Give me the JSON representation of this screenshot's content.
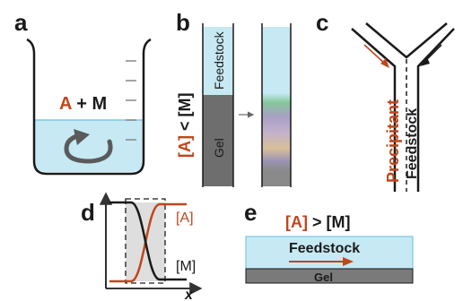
{
  "panels": {
    "a": {
      "label": "a",
      "eq": {
        "A": "A",
        "op": " + ",
        "M": "M"
      }
    },
    "b": {
      "label": "b",
      "condition": {
        "open": "[A]",
        "rel": " < ",
        "rhs": "[M]"
      },
      "feedstock": "Feedstock",
      "gel": "Gel"
    },
    "c": {
      "label": "c",
      "precipitant": "Precipitant",
      "feedstock": "Feedstock"
    },
    "d": {
      "label": "d",
      "series_A": "[A]",
      "series_M": "[M]",
      "xlabel": "x"
    },
    "e": {
      "label": "e",
      "condition": {
        "open": "[A]",
        "rel": " > ",
        "rhs": "[M]"
      },
      "feedstock": "Feedstock",
      "gel": "Gel"
    }
  },
  "colors": {
    "accent": "#c0461c",
    "solution": "#c6e9f4",
    "solution_edge": "#7cc7e0",
    "gel": "#6e6e6e",
    "ink": "#1a1a1a"
  }
}
